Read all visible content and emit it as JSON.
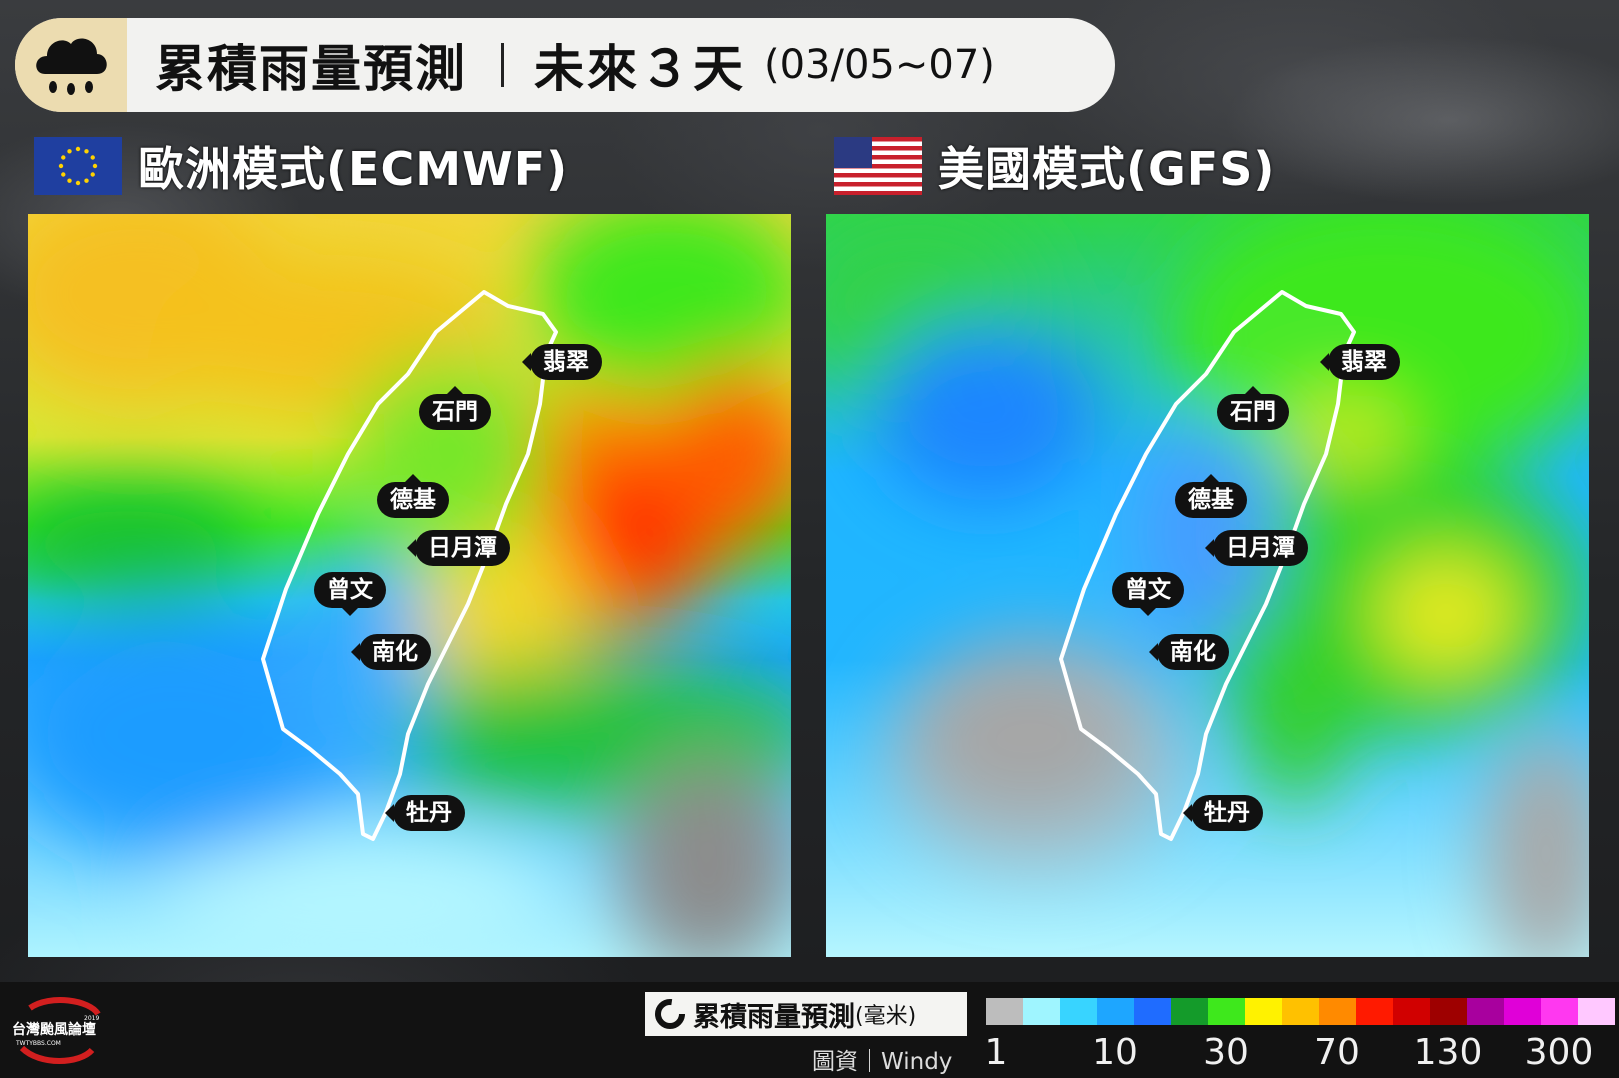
{
  "header": {
    "title": "累積雨量預測",
    "period": "未來３天",
    "dates": "(03/05~07)",
    "icon": "rain-cloud-icon"
  },
  "models": {
    "left": {
      "name": "歐洲模式(ECMWF)",
      "flag": "eu-flag-icon"
    },
    "right": {
      "name": "美國模式(GFS)",
      "flag": "us-flag-icon"
    }
  },
  "locations": {
    "feicui": "翡翠",
    "shimen": "石門",
    "deji": "德基",
    "sunmoonlake": "日月潭",
    "zengwen": "曾文",
    "nanhua": "南化",
    "mudan": "牡丹"
  },
  "legend": {
    "title": "累積雨量預測",
    "unit": "(毫米)",
    "source": "圖資｜Windy",
    "ticks": [
      "1",
      "10",
      "30",
      "70",
      "130",
      "300"
    ],
    "colors": [
      "#bdbdbd",
      "#9ff5ff",
      "#38d4ff",
      "#1ea6ff",
      "#1f6cff",
      "#149b2a",
      "#3ee81c",
      "#fff200",
      "#ffc100",
      "#ff8a00",
      "#ff1a00",
      "#d10000",
      "#9e0000",
      "#a8009e",
      "#e000d8",
      "#ff38f0",
      "#ffc8ff"
    ]
  },
  "logo": {
    "text": "台灣颱風論壇",
    "url_text": "TWTYBBS.COM",
    "year": "2019"
  }
}
